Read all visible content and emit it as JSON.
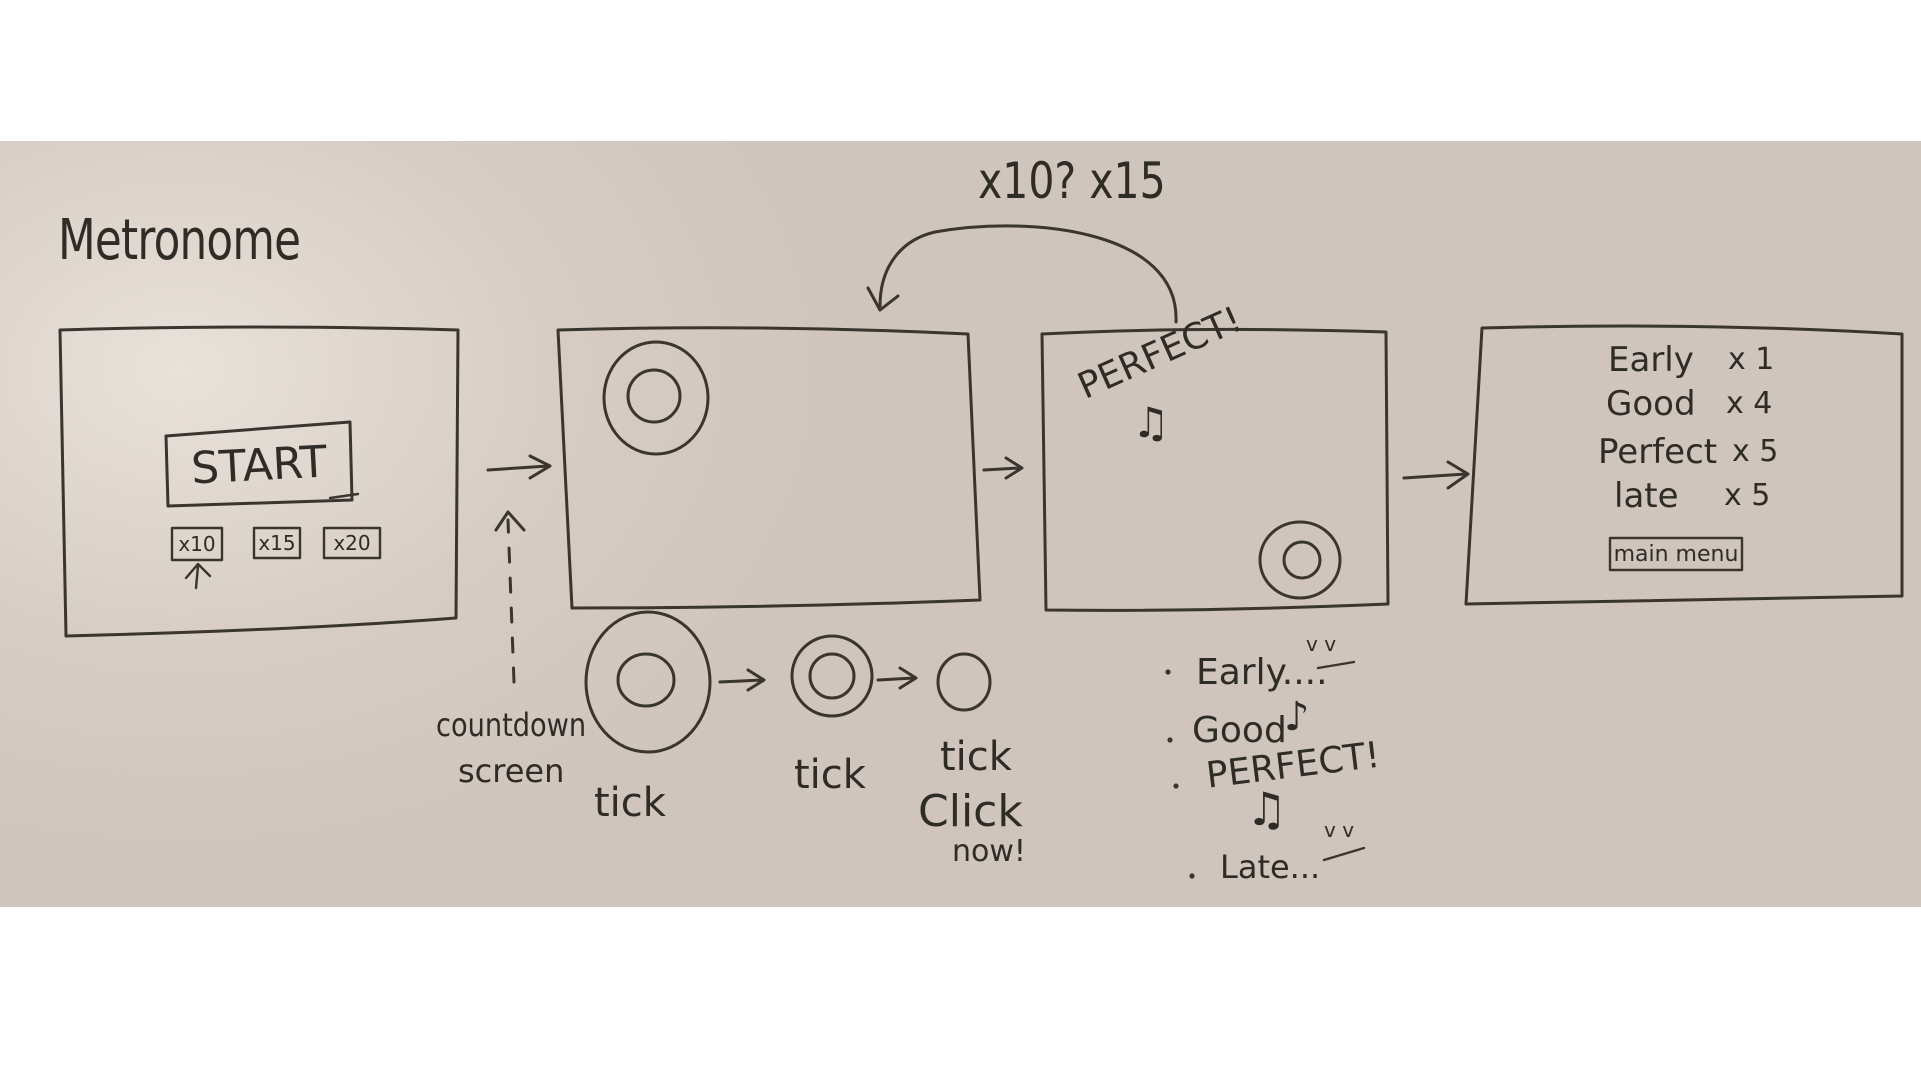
{
  "title": "Metronome",
  "loop_label": "x10? x15",
  "start_screen": {
    "start_label": "START",
    "options": [
      "x10",
      "x15",
      "x20"
    ]
  },
  "countdown": {
    "label_line1": "countdown",
    "label_line2": "screen",
    "ticks": [
      "tick",
      "tick",
      "tick"
    ],
    "final_line1": "Click",
    "final_line2": "now!"
  },
  "feedback_screen": {
    "text": "PERFECT!",
    "note": "♫"
  },
  "feedback_types": [
    {
      "label": "Early",
      "suffix": "....",
      "mark": "v v"
    },
    {
      "label": "Good",
      "suffix": "",
      "mark": "♪"
    },
    {
      "label": "PERFECT!",
      "suffix": "",
      "mark": "♫"
    },
    {
      "label": "Late",
      "suffix": "...",
      "mark": "v v"
    }
  ],
  "results_screen": {
    "rows": [
      {
        "label": "Early",
        "count": "x 1"
      },
      {
        "label": "Good",
        "count": "x 4"
      },
      {
        "label": "Perfect",
        "count": "x 5"
      },
      {
        "label": "late",
        "count": "x 5"
      }
    ],
    "main_menu_label": "main menu"
  }
}
